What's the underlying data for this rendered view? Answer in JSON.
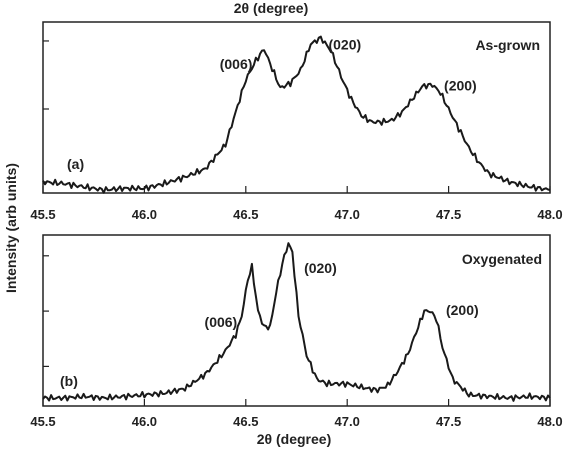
{
  "figure": {
    "top_axis_title": "2θ (degree)",
    "bottom_axis_title": "2θ (degree)",
    "ylabel": "Intensity (arb units)"
  },
  "chart_data": [
    {
      "type": "line",
      "panel_label": "(a)",
      "sample_label": "As-grown",
      "xlabel": "2θ (degree)",
      "ylabel": "Intensity (arb units)",
      "xlim": [
        45.5,
        48.0
      ],
      "ylim": [
        0,
        1.0
      ],
      "x_ticks": [
        "45.5",
        "46.0",
        "46.5",
        "47.0",
        "47.5",
        "48.0"
      ],
      "y_ticks": [
        0.05,
        0.5,
        0.92
      ],
      "y_tick_labels": false,
      "grid": false,
      "peak_labels": [
        {
          "text": "(006)",
          "x": 46.59
        },
        {
          "text": "(020)",
          "x": 46.87
        },
        {
          "text": "(200)",
          "x": 47.42
        }
      ],
      "x": [
        45.5,
        45.6,
        45.7,
        45.8,
        45.9,
        46.0,
        46.1,
        46.2,
        46.3,
        46.4,
        46.45,
        46.5,
        46.55,
        46.59,
        46.63,
        46.67,
        46.72,
        46.77,
        46.82,
        46.87,
        46.92,
        46.97,
        47.02,
        47.07,
        47.12,
        47.17,
        47.22,
        47.27,
        47.32,
        47.37,
        47.42,
        47.46,
        47.5,
        47.55,
        47.6,
        47.65,
        47.7,
        47.8,
        47.9,
        48.0
      ],
      "y": [
        0.05,
        0.04,
        0.02,
        0.0,
        0.01,
        0.01,
        0.04,
        0.08,
        0.13,
        0.28,
        0.48,
        0.68,
        0.8,
        0.87,
        0.75,
        0.63,
        0.66,
        0.74,
        0.9,
        0.94,
        0.86,
        0.7,
        0.56,
        0.46,
        0.42,
        0.42,
        0.43,
        0.48,
        0.56,
        0.64,
        0.65,
        0.6,
        0.5,
        0.38,
        0.26,
        0.17,
        0.1,
        0.05,
        0.02,
        0.0
      ]
    },
    {
      "type": "line",
      "panel_label": "(b)",
      "sample_label": "Oxygenated",
      "xlabel": "2θ (degree)",
      "ylabel": "Intensity (arb units)",
      "xlim": [
        45.5,
        48.0
      ],
      "ylim": [
        0,
        1.0
      ],
      "x_ticks": [
        "45.5",
        "46.0",
        "46.5",
        "47.0",
        "47.5",
        "48.0"
      ],
      "y_ticks": [
        0.2,
        0.55,
        0.9
      ],
      "y_tick_labels": false,
      "grid": false,
      "peak_labels": [
        {
          "text": "(006)",
          "x": 46.53
        },
        {
          "text": "(020)",
          "x": 46.72
        },
        {
          "text": "(200)",
          "x": 47.4
        }
      ],
      "x": [
        45.5,
        45.6,
        45.7,
        45.8,
        45.9,
        46.0,
        46.1,
        46.2,
        46.3,
        46.35,
        46.4,
        46.45,
        46.48,
        46.51,
        46.53,
        46.56,
        46.59,
        46.62,
        46.65,
        46.68,
        46.71,
        46.73,
        46.76,
        46.8,
        46.85,
        46.9,
        47.0,
        47.1,
        47.15,
        47.2,
        47.25,
        47.3,
        47.35,
        47.38,
        47.41,
        47.44,
        47.47,
        47.52,
        47.6,
        47.7,
        47.8,
        47.9,
        48.0
      ],
      "y": [
        0.0,
        0.0,
        0.01,
        0.0,
        0.01,
        0.02,
        0.03,
        0.06,
        0.15,
        0.22,
        0.3,
        0.4,
        0.52,
        0.75,
        0.83,
        0.55,
        0.45,
        0.45,
        0.67,
        0.85,
        0.98,
        0.92,
        0.52,
        0.27,
        0.12,
        0.09,
        0.09,
        0.06,
        0.05,
        0.08,
        0.17,
        0.28,
        0.45,
        0.55,
        0.55,
        0.5,
        0.32,
        0.12,
        0.02,
        0.01,
        0.0,
        0.01,
        0.0
      ]
    }
  ]
}
